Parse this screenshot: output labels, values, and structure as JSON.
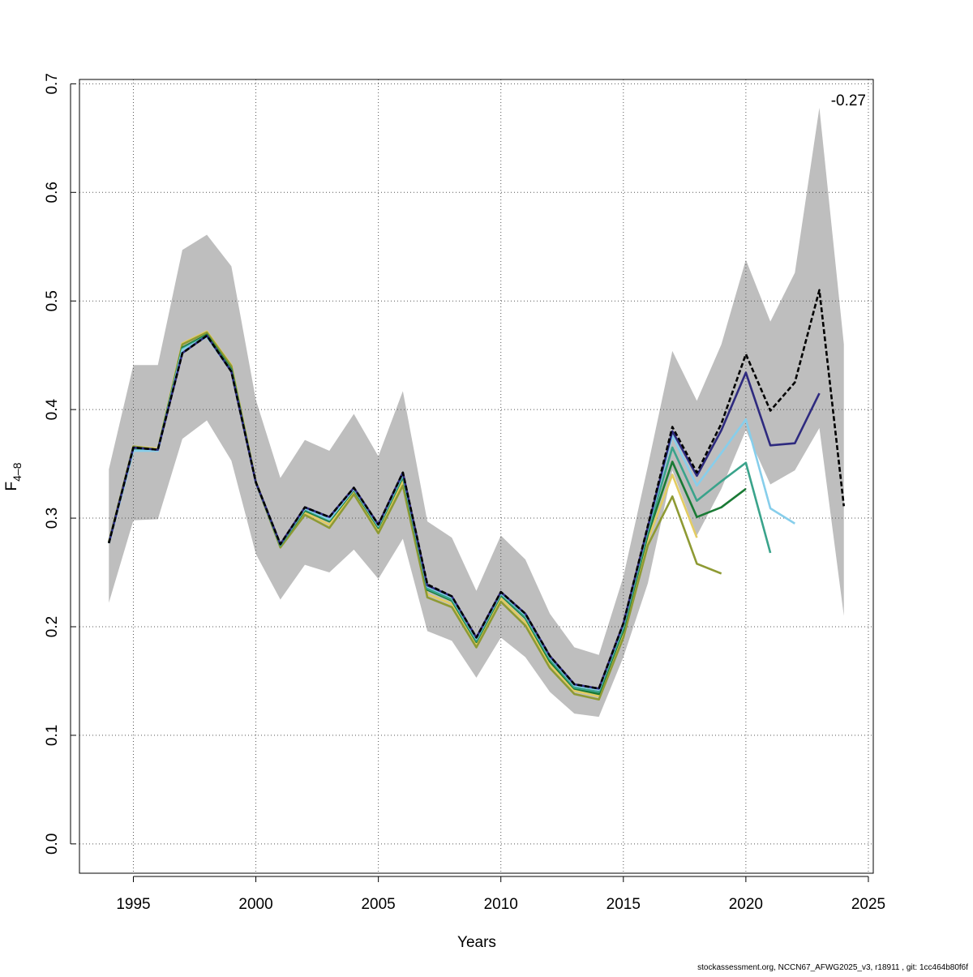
{
  "chart_data": {
    "type": "line",
    "xlabel": "Years",
    "ylabel": "F",
    "ylabel_sub": "4–8",
    "annotation": "-0.27",
    "footer": "stockassessment.org, NCCN67_AFWG2025_v3, r18911 , git: 1cc464b80f6f",
    "x": [
      1994,
      1995,
      1996,
      1997,
      1998,
      1999,
      2000,
      2001,
      2002,
      2003,
      2004,
      2005,
      2006,
      2007,
      2008,
      2009,
      2010,
      2011,
      2012,
      2013,
      2014,
      2015,
      2016,
      2017,
      2018,
      2019,
      2020,
      2021,
      2022,
      2023,
      2024
    ],
    "xlim": [
      1992.8,
      2025.2
    ],
    "xticks": [
      1995,
      2000,
      2005,
      2010,
      2015,
      2020,
      2025
    ],
    "ylim": [
      -0.027,
      0.704
    ],
    "yticks": [
      {
        "value": 0,
        "label": "0.0"
      },
      0.1,
      0.2,
      0.3,
      0.4,
      0.5,
      0.6,
      0.7
    ],
    "grid": true,
    "band": {
      "color": "#bebebe",
      "lower": [
        0.222,
        0.298,
        0.299,
        0.373,
        0.39,
        0.353,
        0.267,
        0.225,
        0.257,
        0.25,
        0.271,
        0.244,
        0.281,
        0.196,
        0.187,
        0.153,
        0.19,
        0.172,
        0.14,
        0.12,
        0.117,
        0.172,
        0.24,
        0.344,
        0.284,
        0.327,
        0.381,
        0.331,
        0.344,
        0.383,
        0.21
      ],
      "upper": [
        0.345,
        0.441,
        0.441,
        0.547,
        0.561,
        0.532,
        0.409,
        0.337,
        0.372,
        0.362,
        0.396,
        0.357,
        0.417,
        0.297,
        0.282,
        0.233,
        0.284,
        0.262,
        0.212,
        0.181,
        0.174,
        0.246,
        0.348,
        0.454,
        0.408,
        0.46,
        0.538,
        0.481,
        0.526,
        0.678,
        0.46
      ]
    },
    "series": [
      {
        "color": "#e3cc62",
        "linestyle": "solid",
        "values": [
          0.278,
          0.366,
          0.364,
          0.461,
          0.472,
          0.441,
          0.334,
          0.274,
          0.305,
          0.294,
          0.324,
          0.289,
          0.334,
          0.23,
          0.221,
          0.184,
          0.226,
          0.204,
          0.165,
          0.141,
          0.136,
          0.193,
          0.28,
          0.34,
          0.282,
          null,
          null,
          null,
          null,
          null,
          null
        ]
      },
      {
        "color": "#8e9a33",
        "linestyle": "solid",
        "values": [
          0.278,
          0.366,
          0.363,
          0.46,
          0.471,
          0.44,
          0.333,
          0.273,
          0.303,
          0.291,
          0.322,
          0.286,
          0.33,
          0.227,
          0.218,
          0.181,
          0.223,
          0.201,
          0.162,
          0.138,
          0.133,
          0.19,
          0.275,
          0.32,
          0.258,
          0.249,
          null,
          null,
          null,
          null,
          null
        ]
      },
      {
        "color": "#1a7a35",
        "linestyle": "solid",
        "values": [
          0.277,
          0.365,
          0.363,
          0.457,
          0.469,
          0.437,
          0.333,
          0.275,
          0.307,
          0.297,
          0.326,
          0.291,
          0.338,
          0.234,
          0.224,
          0.186,
          0.229,
          0.208,
          0.168,
          0.143,
          0.138,
          0.197,
          0.285,
          0.352,
          0.301,
          0.31,
          0.327,
          null,
          null,
          null,
          null
        ]
      },
      {
        "color": "#3aa38b",
        "linestyle": "solid",
        "values": [
          0.277,
          0.364,
          0.363,
          0.456,
          0.468,
          0.436,
          0.333,
          0.275,
          0.308,
          0.298,
          0.327,
          0.292,
          0.339,
          0.235,
          0.225,
          0.187,
          0.23,
          0.209,
          0.17,
          0.144,
          0.14,
          0.199,
          0.288,
          0.365,
          0.316,
          0.334,
          0.351,
          0.268,
          null,
          null,
          null
        ]
      },
      {
        "color": "#87ceeb",
        "linestyle": "solid",
        "values": [
          0.277,
          0.362,
          0.362,
          0.455,
          0.467,
          0.435,
          0.333,
          0.276,
          0.309,
          0.299,
          0.327,
          0.293,
          0.341,
          0.237,
          0.227,
          0.189,
          0.231,
          0.211,
          0.172,
          0.146,
          0.142,
          0.202,
          0.291,
          0.376,
          0.33,
          0.36,
          0.391,
          0.309,
          0.295,
          null,
          null
        ]
      },
      {
        "color": "#2e2a7f",
        "linestyle": "solid",
        "values": [
          0.277,
          0.365,
          0.363,
          0.452,
          0.468,
          0.435,
          0.333,
          0.276,
          0.31,
          0.301,
          0.328,
          0.294,
          0.342,
          0.238,
          0.228,
          0.19,
          0.232,
          0.212,
          0.173,
          0.147,
          0.143,
          0.203,
          0.292,
          0.38,
          0.339,
          0.381,
          0.434,
          0.367,
          0.369,
          0.415,
          null
        ]
      },
      {
        "color": "#000000",
        "linestyle": "dashed",
        "values": [
          0.277,
          0.365,
          0.363,
          0.452,
          0.468,
          0.435,
          0.333,
          0.276,
          0.31,
          0.301,
          0.328,
          0.294,
          0.342,
          0.239,
          0.228,
          0.19,
          0.232,
          0.212,
          0.173,
          0.147,
          0.143,
          0.203,
          0.293,
          0.384,
          0.342,
          0.387,
          0.451,
          0.399,
          0.425,
          0.51,
          0.311
        ]
      }
    ]
  }
}
